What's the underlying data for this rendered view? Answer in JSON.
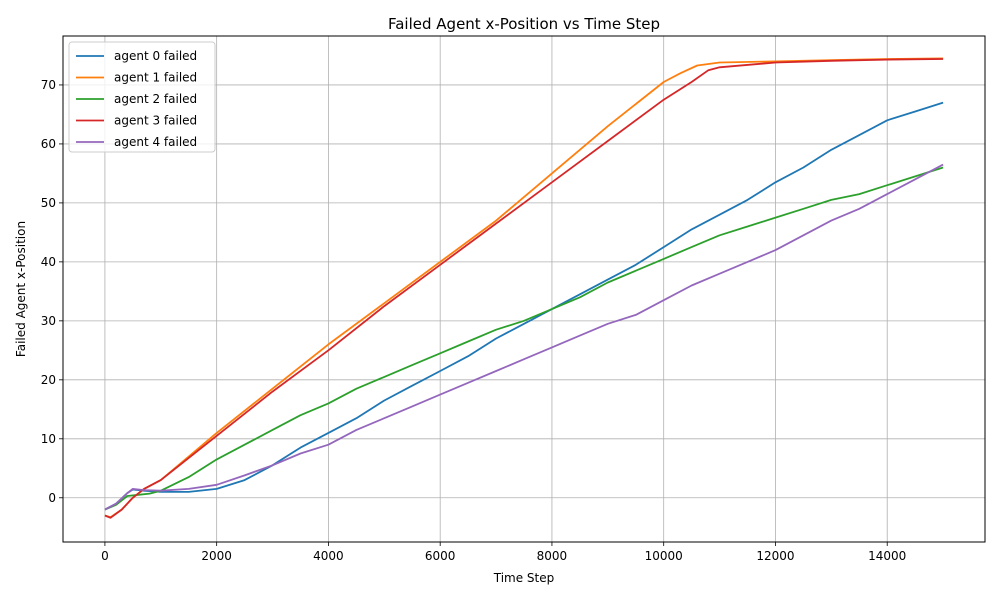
{
  "chart_data": {
    "type": "line",
    "title": "Failed Agent x-Position vs Time Step",
    "xlabel": "Time Step",
    "ylabel": "Failed Agent x-Position",
    "xlim": [
      -750,
      15750
    ],
    "ylim": [
      -7.5,
      78.3
    ],
    "xticks": [
      0,
      2000,
      4000,
      6000,
      8000,
      10000,
      12000,
      14000
    ],
    "yticks": [
      0,
      10,
      20,
      30,
      40,
      50,
      60,
      70
    ],
    "grid": true,
    "legend_position": "top-left",
    "series": [
      {
        "name": "agent 0 failed",
        "color": "#1f77b4",
        "x": [
          0,
          200,
          400,
          500,
          700,
          1000,
          1500,
          2000,
          2500,
          3000,
          3500,
          4000,
          4500,
          5000,
          5500,
          6000,
          6500,
          7000,
          7500,
          8000,
          8500,
          9000,
          9500,
          10000,
          10500,
          11000,
          11500,
          12000,
          12500,
          13000,
          13500,
          14000,
          14500,
          15000
        ],
        "y": [
          -2.0,
          -1.0,
          0.8,
          1.4,
          1.2,
          1.0,
          1.0,
          1.5,
          3.0,
          5.5,
          8.5,
          11.0,
          13.5,
          16.5,
          19.0,
          21.5,
          24.0,
          27.0,
          29.5,
          32.0,
          34.5,
          37.0,
          39.5,
          42.5,
          45.5,
          48.0,
          50.5,
          53.5,
          56.0,
          59.0,
          61.5,
          64.0,
          65.5,
          67.0
        ]
      },
      {
        "name": "agent 1 failed",
        "color": "#ff7f0e",
        "x": [
          0,
          100,
          300,
          500,
          700,
          1000,
          2000,
          3000,
          4000,
          5000,
          6000,
          7000,
          8000,
          9000,
          10000,
          10300,
          10600,
          11000,
          12000,
          13000,
          14000,
          15000
        ],
        "y": [
          -3.0,
          -3.3,
          -2.0,
          0.0,
          1.5,
          3.0,
          11.0,
          18.5,
          26.0,
          33.0,
          40.0,
          47.0,
          55.0,
          63.0,
          70.5,
          72.0,
          73.3,
          73.8,
          74.0,
          74.2,
          74.4,
          74.5
        ]
      },
      {
        "name": "agent 2 failed",
        "color": "#2ca02c",
        "x": [
          0,
          200,
          400,
          600,
          800,
          1000,
          1500,
          2000,
          2500,
          3000,
          3500,
          4000,
          4500,
          5000,
          5500,
          6000,
          6500,
          7000,
          7500,
          8000,
          8500,
          9000,
          9500,
          10000,
          10500,
          11000,
          11500,
          12000,
          12500,
          13000,
          13500,
          14000,
          14500,
          15000
        ],
        "y": [
          -2.0,
          -1.2,
          0.3,
          0.5,
          0.7,
          1.2,
          3.5,
          6.5,
          9.0,
          11.5,
          14.0,
          16.0,
          18.5,
          20.5,
          22.5,
          24.5,
          26.5,
          28.5,
          30.0,
          32.0,
          34.0,
          36.5,
          38.5,
          40.5,
          42.5,
          44.5,
          46.0,
          47.5,
          49.0,
          50.5,
          51.5,
          53.0,
          54.5,
          56.0
        ]
      },
      {
        "name": "agent 3 failed",
        "color": "#d62728",
        "x": [
          0,
          100,
          300,
          500,
          700,
          1000,
          2000,
          3000,
          4000,
          5000,
          6000,
          7000,
          8000,
          9000,
          10000,
          10500,
          10800,
          11000,
          12000,
          13000,
          14000,
          15000
        ],
        "y": [
          -3.0,
          -3.4,
          -2.0,
          0.0,
          1.5,
          3.0,
          10.5,
          18.0,
          25.0,
          32.5,
          39.5,
          46.5,
          53.5,
          60.5,
          67.5,
          70.5,
          72.5,
          73.0,
          73.8,
          74.1,
          74.3,
          74.4
        ]
      },
      {
        "name": "agent 4 failed",
        "color": "#9467bd",
        "x": [
          0,
          200,
          400,
          500,
          700,
          1000,
          1500,
          2000,
          2500,
          3000,
          3500,
          4000,
          4500,
          5000,
          5500,
          6000,
          6500,
          7000,
          7500,
          8000,
          8500,
          9000,
          9500,
          10000,
          10500,
          11000,
          11500,
          12000,
          12500,
          13000,
          13500,
          14000,
          14500,
          15000
        ],
        "y": [
          -2.0,
          -1.0,
          0.8,
          1.5,
          1.3,
          1.2,
          1.5,
          2.2,
          3.8,
          5.5,
          7.5,
          9.0,
          11.5,
          13.5,
          15.5,
          17.5,
          19.5,
          21.5,
          23.5,
          25.5,
          27.5,
          29.5,
          31.0,
          33.5,
          36.0,
          38.0,
          40.0,
          42.0,
          44.5,
          47.0,
          49.0,
          51.5,
          54.0,
          56.5
        ]
      }
    ]
  }
}
